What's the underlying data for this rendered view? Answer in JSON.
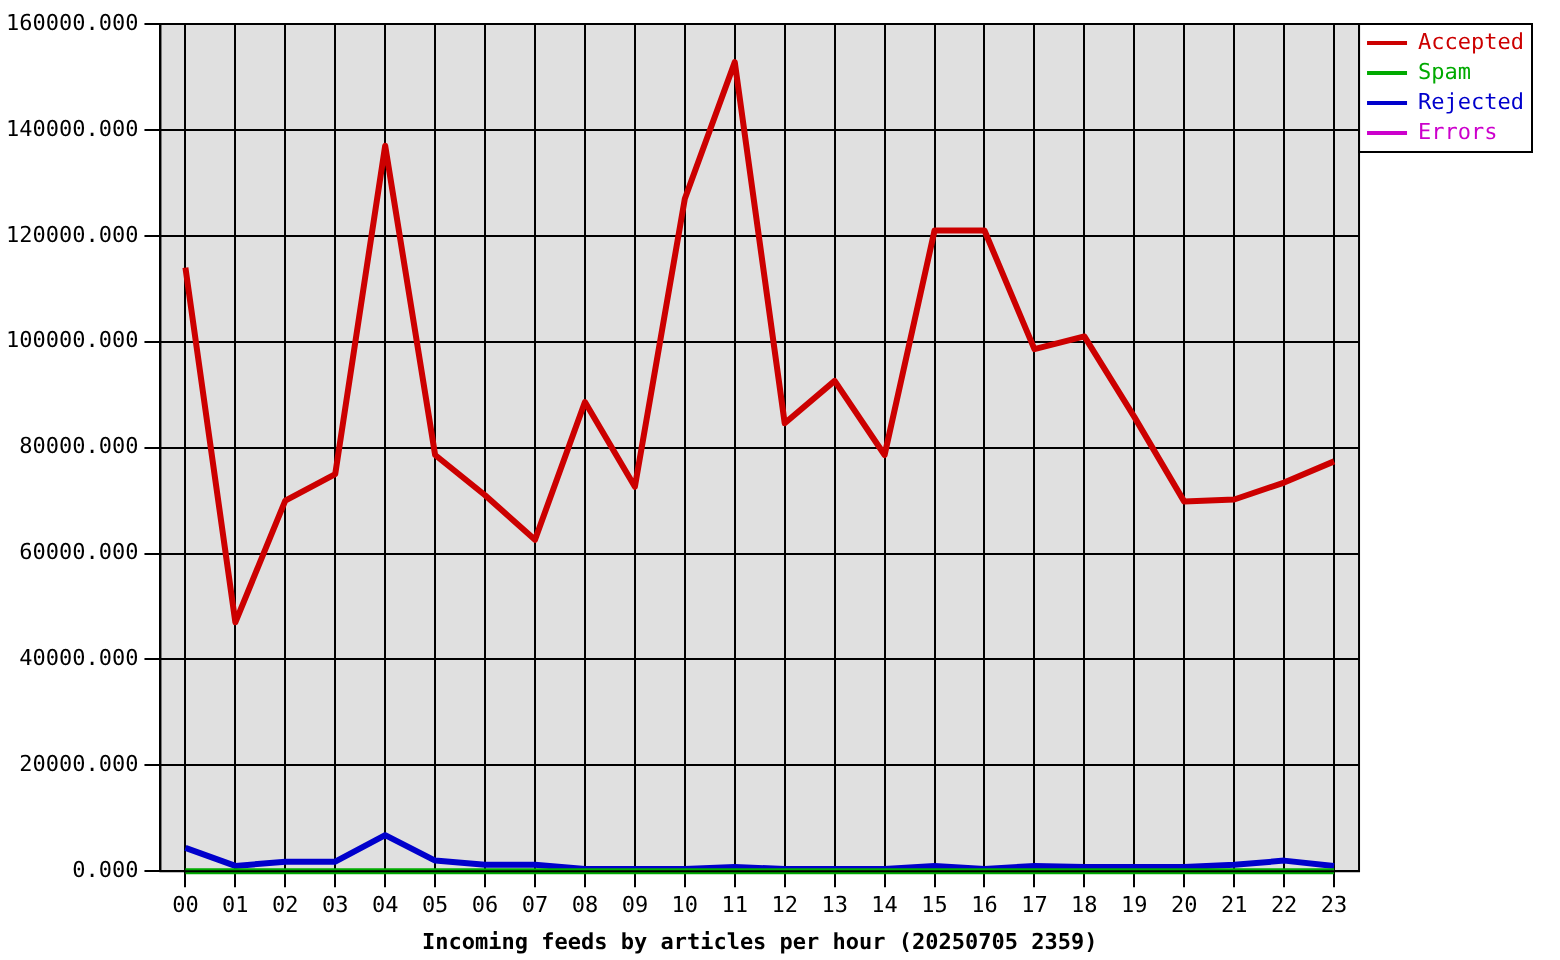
{
  "chart_data": {
    "type": "line",
    "xlabel": "Incoming feeds by articles per hour (20250705 2359)",
    "categories": [
      "00",
      "01",
      "02",
      "03",
      "04",
      "05",
      "06",
      "07",
      "08",
      "09",
      "10",
      "11",
      "12",
      "13",
      "14",
      "15",
      "16",
      "17",
      "18",
      "19",
      "20",
      "21",
      "22",
      "23"
    ],
    "series": [
      {
        "name": "Accepted",
        "color": "#cc0000",
        "values": [
          114000,
          47000,
          70000,
          75000,
          137000,
          78600,
          71000,
          62600,
          88600,
          72600,
          127000,
          152800,
          84600,
          92600,
          78600,
          121000,
          121000,
          98600,
          101000,
          85800,
          69800,
          70200,
          73400,
          77400
        ]
      },
      {
        "name": "Spam",
        "color": "#00aa00",
        "values": [
          0,
          0,
          0,
          0,
          0,
          0,
          0,
          0,
          0,
          0,
          0,
          0,
          0,
          0,
          0,
          0,
          0,
          0,
          0,
          0,
          0,
          0,
          0,
          0
        ]
      },
      {
        "name": "Rejected",
        "color": "#0000cc",
        "values": [
          4400,
          1000,
          1800,
          1800,
          6800,
          2000,
          1200,
          1200,
          400,
          400,
          400,
          800,
          400,
          400,
          400,
          1000,
          400,
          1000,
          800,
          800,
          800,
          1200,
          2000,
          1000
        ]
      },
      {
        "name": "Errors",
        "color": "#cc00cc",
        "values": [
          null,
          null,
          null,
          null,
          null,
          null,
          null,
          null,
          null,
          null,
          null,
          null,
          null,
          null,
          null,
          null,
          null,
          null,
          null,
          null,
          null,
          null,
          null,
          null
        ]
      }
    ],
    "ylim": [
      0,
      160000
    ],
    "yticks": [
      {
        "value": 0,
        "label": "0.000"
      },
      {
        "value": 20000,
        "label": "20000.000"
      },
      {
        "value": 40000,
        "label": "40000.000"
      },
      {
        "value": 60000,
        "label": "60000.000"
      },
      {
        "value": 80000,
        "label": "80000.000"
      },
      {
        "value": 100000,
        "label": "100000.000"
      },
      {
        "value": 120000,
        "label": "120000.000"
      },
      {
        "value": 140000,
        "label": "140000.000"
      },
      {
        "value": 160000,
        "label": "160000.000"
      }
    ],
    "grid": true,
    "legend": "top right",
    "line_style": "solid"
  }
}
